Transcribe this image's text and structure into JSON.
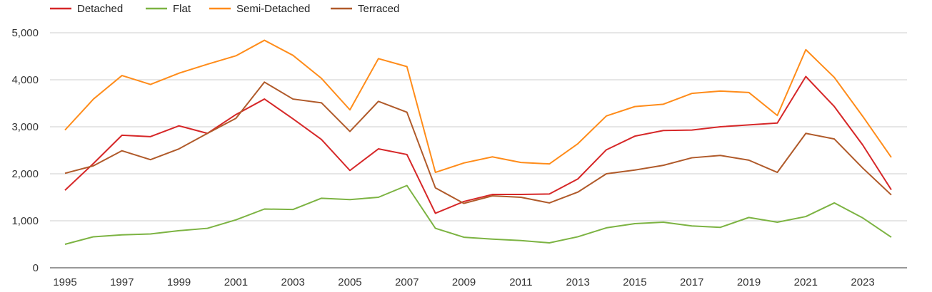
{
  "chart_data": {
    "type": "line",
    "title": "",
    "xlabel": "",
    "ylabel": "",
    "x": [
      1995,
      1996,
      1997,
      1998,
      1999,
      2000,
      2001,
      2002,
      2003,
      2004,
      2005,
      2006,
      2007,
      2008,
      2009,
      2010,
      2011,
      2012,
      2013,
      2014,
      2015,
      2016,
      2017,
      2018,
      2019,
      2020,
      2021,
      2022,
      2023,
      2024
    ],
    "x_tick_labels": [
      "1995",
      "1997",
      "1999",
      "2001",
      "2003",
      "2005",
      "2007",
      "2009",
      "2011",
      "2013",
      "2015",
      "2017",
      "2019",
      "2021",
      "2023"
    ],
    "y_tick_labels": [
      "0",
      "1,000",
      "2,000",
      "3,000",
      "4,000",
      "5,000"
    ],
    "y_ticks": [
      0,
      1000,
      2000,
      3000,
      4000,
      5000
    ],
    "ylim": [
      0,
      5000
    ],
    "xlim": [
      1995,
      2024
    ],
    "grid": "horizontal",
    "legend_position": "top-left",
    "series": [
      {
        "name": "Detached",
        "color": "#d62728",
        "values": [
          1650,
          2220,
          2820,
          2790,
          3020,
          2860,
          3260,
          3590,
          3170,
          2730,
          2070,
          2530,
          2410,
          1160,
          1410,
          1560,
          1560,
          1570,
          1890,
          2510,
          2800,
          2920,
          2930,
          3000,
          3040,
          3080,
          4070,
          3430,
          2610,
          1660
        ]
      },
      {
        "name": "Flat",
        "color": "#7cb342",
        "values": [
          500,
          660,
          700,
          720,
          790,
          840,
          1020,
          1250,
          1240,
          1480,
          1450,
          1500,
          1750,
          840,
          650,
          610,
          580,
          530,
          660,
          850,
          940,
          970,
          890,
          860,
          1070,
          970,
          1090,
          1380,
          1060,
          650
        ]
      },
      {
        "name": "Semi-Detached",
        "color": "#ff8c1a",
        "values": [
          2930,
          3590,
          4090,
          3900,
          4140,
          4330,
          4510,
          4840,
          4520,
          4030,
          3360,
          4450,
          4280,
          2030,
          2230,
          2360,
          2240,
          2210,
          2640,
          3230,
          3430,
          3480,
          3710,
          3760,
          3730,
          3240,
          4640,
          4050,
          3220,
          2350
        ]
      },
      {
        "name": "Terraced",
        "color": "#b05a2a",
        "values": [
          2010,
          2170,
          2490,
          2300,
          2530,
          2860,
          3180,
          3950,
          3590,
          3510,
          2900,
          3540,
          3310,
          1700,
          1370,
          1530,
          1500,
          1380,
          1610,
          2000,
          2080,
          2180,
          2340,
          2390,
          2290,
          2030,
          2860,
          2740,
          2120,
          1550
        ]
      }
    ]
  }
}
